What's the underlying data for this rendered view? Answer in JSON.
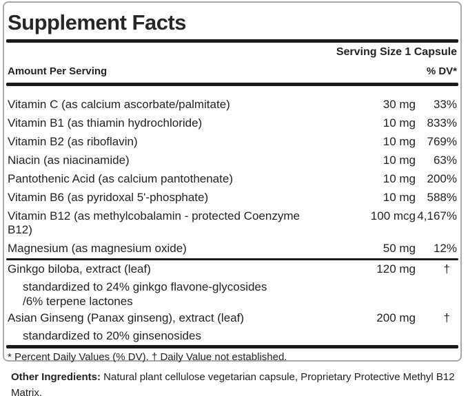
{
  "label": {
    "title": "Supplement Facts",
    "serving_size": "Serving Size 1 Capsule",
    "columns": {
      "amount": "Amount Per Serving",
      "dv": "% DV*"
    },
    "nutrients": [
      {
        "name": "Vitamin C (as calcium ascorbate/palmitate)",
        "amount": "30 mg",
        "dv": "33%"
      },
      {
        "name": "Vitamin B1 (as thiamin hydrochloride)",
        "amount": "10 mg",
        "dv": "833%"
      },
      {
        "name": "Vitamin B2 (as riboflavin)",
        "amount": "10 mg",
        "dv": "769%"
      },
      {
        "name": "Niacin (as niacinamide)",
        "amount": "10 mg",
        "dv": "63%"
      },
      {
        "name": "Pantothenic Acid (as calcium pantothenate)",
        "amount": "10 mg",
        "dv": "200%"
      },
      {
        "name": "Vitamin B6 (as pyridoxal 5'-phosphate)",
        "amount": "10 mg",
        "dv": "588%"
      },
      {
        "name": "Vitamin B12 (as methylcobalamin - protected Coenzyme B12)",
        "amount": "100 mcg",
        "dv": "4,167%"
      },
      {
        "name": "Magnesium (as magnesium oxide)",
        "amount": "50 mg",
        "dv": "12%"
      }
    ],
    "botanicals": [
      {
        "name": "Ginkgo biloba, extract (leaf)",
        "amount": "120 mg",
        "dv": "†",
        "details": [
          "standardized to 24% ginkgo flavone-glycosides",
          "/6% terpene lactones"
        ]
      },
      {
        "name": "Asian Ginseng (Panax ginseng), extract (leaf)",
        "amount": "200 mg",
        "dv": "†",
        "details": [
          "standardized to 20% ginsenosides"
        ]
      }
    ],
    "footnote": "* Percent Daily Values (% DV). † Daily Value not established.",
    "other_ingredients_label": "Other Ingredients:",
    "other_ingredients_text": " Natural plant cellulose vegetarian capsule, Proprietary Protective Methyl B12 Matrix.",
    "colors": {
      "text": "#262223",
      "bar": "#1b1b1b",
      "box_border": "#a9a9a9",
      "background": "#ffffff"
    }
  }
}
